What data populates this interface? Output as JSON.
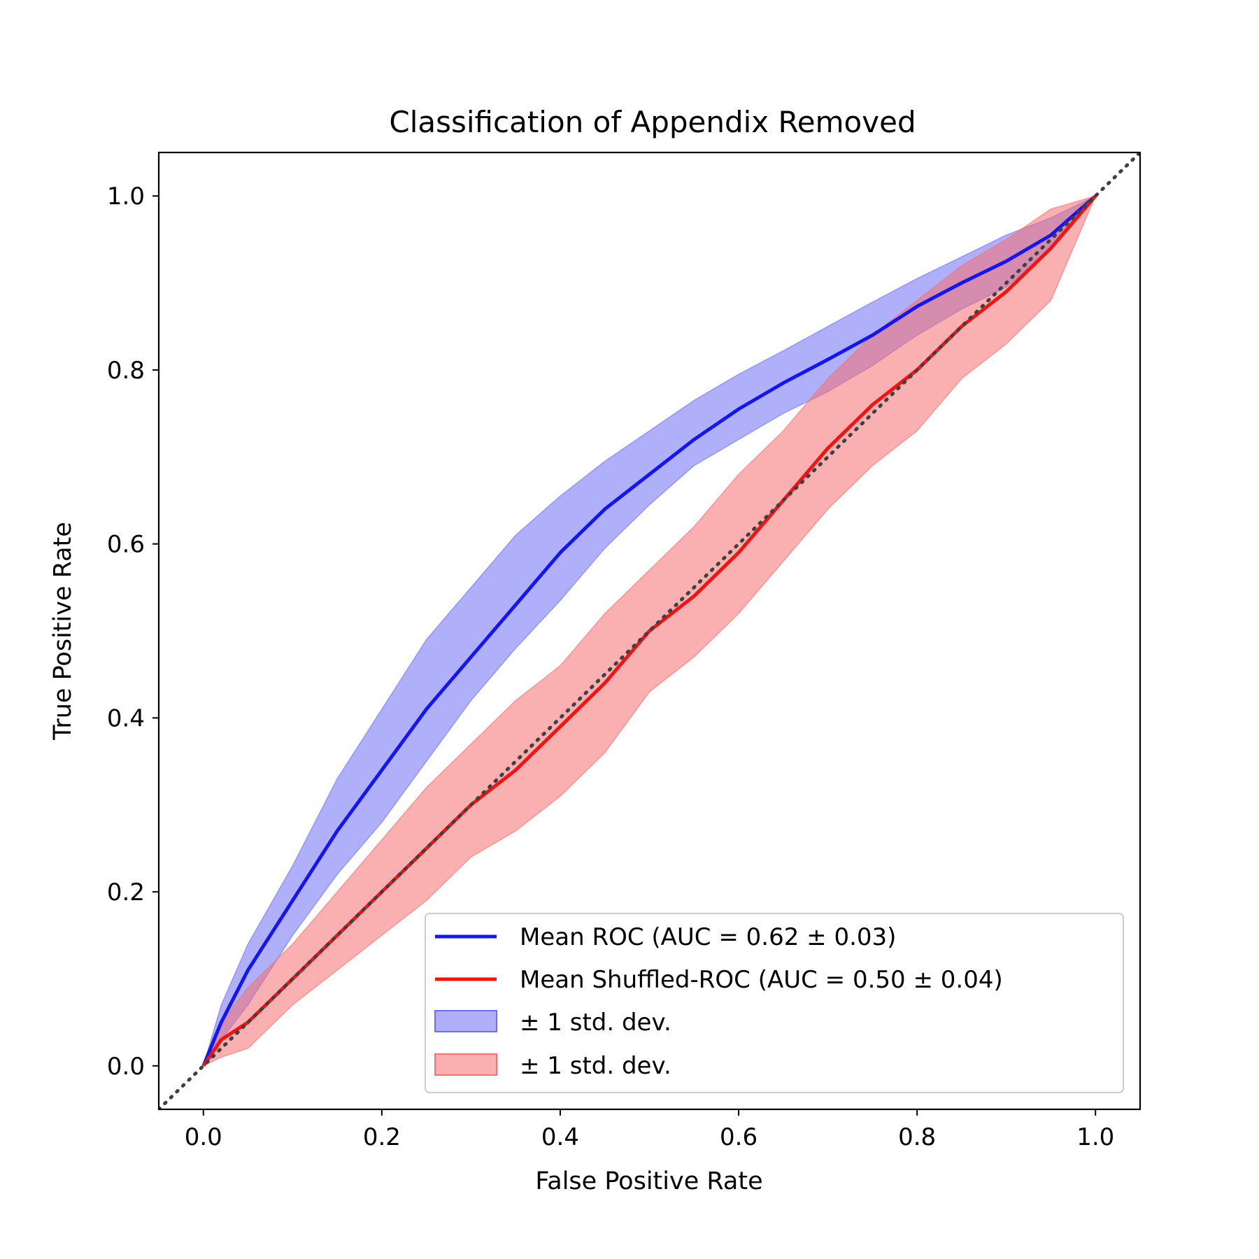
{
  "chart_data": {
    "type": "line",
    "title": "Classification of Appendix Removed",
    "xlabel": "False Positive Rate",
    "ylabel": "True Positive Rate",
    "xlim": [
      -0.05,
      1.05
    ],
    "ylim": [
      -0.05,
      1.05
    ],
    "xticks": [
      "0.0",
      "0.2",
      "0.4",
      "0.6",
      "0.8",
      "1.0"
    ],
    "yticks": [
      "0.0",
      "0.2",
      "0.4",
      "0.6",
      "0.8",
      "1.0"
    ],
    "grid": false,
    "legend_position": "lower-right",
    "x": [
      0.0,
      0.02,
      0.05,
      0.1,
      0.15,
      0.2,
      0.25,
      0.3,
      0.35,
      0.4,
      0.45,
      0.5,
      0.55,
      0.6,
      0.65,
      0.7,
      0.75,
      0.8,
      0.85,
      0.9,
      0.95,
      1.0
    ],
    "series": [
      {
        "name": "Mean ROC (AUC = 0.62 ± 0.03)",
        "color": "#1515ee",
        "values": [
          0.0,
          0.05,
          0.11,
          0.19,
          0.27,
          0.34,
          0.41,
          0.47,
          0.53,
          0.59,
          0.64,
          0.68,
          0.72,
          0.755,
          0.785,
          0.812,
          0.84,
          0.873,
          0.9,
          0.925,
          0.955,
          1.0
        ],
        "band_upper": [
          0.0,
          0.07,
          0.14,
          0.23,
          0.33,
          0.41,
          0.49,
          0.55,
          0.61,
          0.655,
          0.695,
          0.73,
          0.765,
          0.795,
          0.822,
          0.85,
          0.878,
          0.905,
          0.93,
          0.955,
          0.975,
          1.0
        ],
        "band_lower": [
          0.0,
          0.03,
          0.07,
          0.15,
          0.22,
          0.28,
          0.35,
          0.42,
          0.48,
          0.535,
          0.595,
          0.645,
          0.69,
          0.72,
          0.75,
          0.775,
          0.805,
          0.84,
          0.87,
          0.895,
          0.94,
          1.0
        ]
      },
      {
        "name": "Mean Shuffled-ROC (AUC = 0.50 ± 0.04)",
        "color": "#ee1515",
        "values": [
          0.0,
          0.03,
          0.05,
          0.1,
          0.15,
          0.2,
          0.25,
          0.3,
          0.34,
          0.39,
          0.44,
          0.5,
          0.54,
          0.59,
          0.65,
          0.71,
          0.76,
          0.8,
          0.85,
          0.89,
          0.94,
          1.0
        ],
        "band_upper": [
          0.0,
          0.05,
          0.09,
          0.14,
          0.2,
          0.26,
          0.32,
          0.37,
          0.42,
          0.46,
          0.52,
          0.57,
          0.62,
          0.68,
          0.73,
          0.79,
          0.84,
          0.88,
          0.92,
          0.95,
          0.985,
          1.0
        ],
        "band_lower": [
          0.0,
          0.01,
          0.02,
          0.07,
          0.11,
          0.15,
          0.19,
          0.24,
          0.27,
          0.31,
          0.36,
          0.43,
          0.47,
          0.52,
          0.58,
          0.64,
          0.69,
          0.73,
          0.79,
          0.83,
          0.88,
          1.0
        ]
      }
    ],
    "band_legend": [
      {
        "name": "± 1 std. dev.",
        "color": "#6f6ff5"
      },
      {
        "name": "± 1 std. dev.",
        "color": "#f56f6f"
      }
    ],
    "reference_line": {
      "style": "dotted",
      "color": "#404040"
    }
  }
}
